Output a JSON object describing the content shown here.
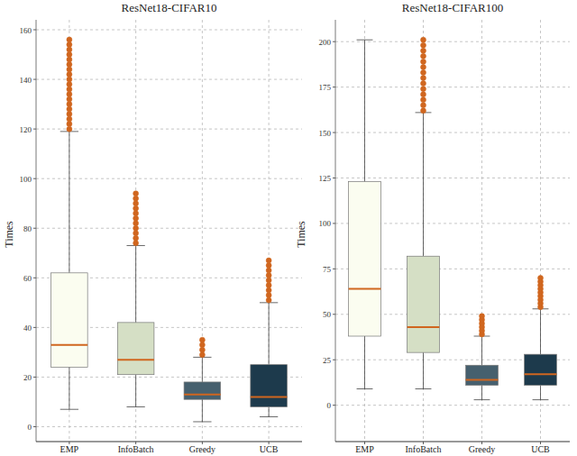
{
  "chart_data": [
    {
      "type": "box",
      "title": "ResNet18-CIFAR10",
      "y_label": "Times",
      "categories": [
        "EMP",
        "InfoBatch",
        "Greedy",
        "UCB"
      ],
      "colors": [
        "#fbfdf0",
        "#d5dfc5",
        "#46606e",
        "#1d3a4c"
      ],
      "boxes": [
        {
          "min": 7,
          "q1": 24,
          "median": 33,
          "q3": 62,
          "max": 119,
          "outliers": [
            120,
            122,
            124,
            126,
            128,
            130,
            132,
            134,
            136,
            138,
            140,
            142,
            144,
            146,
            148,
            150,
            152,
            154,
            156
          ]
        },
        {
          "min": 8,
          "q1": 21,
          "median": 27,
          "q3": 42,
          "max": 73,
          "outliers": [
            74,
            76,
            78,
            80,
            82,
            84,
            86,
            88,
            90,
            92,
            94
          ]
        },
        {
          "min": 2,
          "q1": 11,
          "median": 13,
          "q3": 18,
          "max": 28,
          "outliers": [
            29,
            31,
            33,
            35
          ]
        },
        {
          "min": 4,
          "q1": 8,
          "median": 12,
          "q3": 25,
          "max": 50,
          "outliers": [
            51,
            53,
            55,
            57,
            59,
            61,
            63,
            65,
            67
          ]
        }
      ],
      "ylim": [
        -6,
        164
      ],
      "yticks": [
        0,
        20,
        40,
        60,
        80,
        100,
        120,
        140,
        160
      ],
      "grid": true
    },
    {
      "type": "box",
      "title": "ResNet18-CIFAR100",
      "y_label": "Times",
      "categories": [
        "EMP",
        "InfoBatch",
        "Greedy",
        "UCB"
      ],
      "colors": [
        "#fbfdf0",
        "#d5dfc5",
        "#46606e",
        "#1d3a4c"
      ],
      "boxes": [
        {
          "min": 9,
          "q1": 38,
          "median": 64,
          "q3": 123,
          "max": 201,
          "outliers": []
        },
        {
          "min": 9,
          "q1": 29,
          "median": 43,
          "q3": 82,
          "max": 161,
          "outliers": [
            162,
            165,
            168,
            171,
            174,
            177,
            180,
            183,
            186,
            189,
            192,
            195,
            198,
            201
          ]
        },
        {
          "min": 3,
          "q1": 11,
          "median": 14,
          "q3": 22,
          "max": 38,
          "outliers": [
            39,
            41,
            43,
            45,
            47,
            49
          ]
        },
        {
          "min": 3,
          "q1": 11,
          "median": 17,
          "q3": 28,
          "max": 53,
          "outliers": [
            54,
            56,
            58,
            60,
            62,
            64,
            66,
            68,
            70
          ]
        }
      ],
      "ylim": [
        -20,
        212
      ],
      "yticks": [
        0,
        25,
        50,
        75,
        100,
        125,
        150,
        175,
        200
      ],
      "grid": true
    }
  ]
}
